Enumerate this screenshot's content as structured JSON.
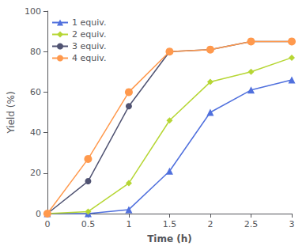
{
  "chart_data": {
    "type": "line",
    "xlabel": "Time (h)",
    "ylabel": "Yield (%)",
    "xlim": [
      0,
      3
    ],
    "ylim": [
      0,
      100
    ],
    "xticks": [
      0,
      0.5,
      1,
      1.5,
      2,
      2.5,
      3
    ],
    "yticks": [
      0,
      20,
      40,
      60,
      80,
      100
    ],
    "x": [
      0,
      0.5,
      1,
      1.5,
      2,
      2.5,
      3
    ],
    "series": [
      {
        "name": "1 equiv.",
        "marker": "triangle",
        "values": [
          0,
          0,
          2,
          21,
          50,
          61,
          66
        ]
      },
      {
        "name": "2 equiv.",
        "marker": "diamond",
        "values": [
          0,
          1,
          15,
          46,
          65,
          70,
          77
        ]
      },
      {
        "name": "3 equiv.",
        "marker": "circle",
        "values": [
          0,
          16,
          53,
          80,
          81,
          85,
          85
        ]
      },
      {
        "name": "4 equiv.",
        "marker": "circle",
        "values": [
          0,
          27,
          60,
          80,
          81,
          85,
          85
        ]
      }
    ],
    "legend": "upper left",
    "grid": false
  }
}
